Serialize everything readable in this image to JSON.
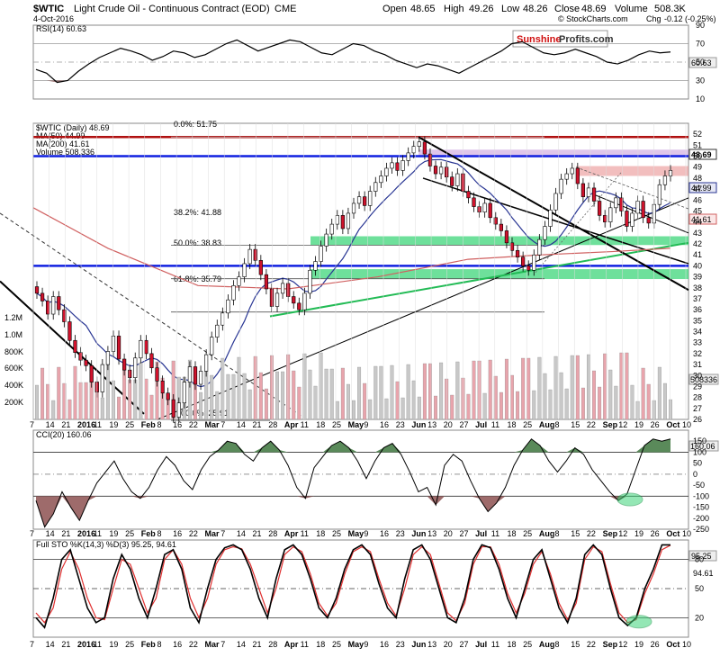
{
  "header": {
    "symbol": "$WTIC",
    "name": "Light Crude Oil - Continuous Contract (EOD)",
    "exchange": "CME",
    "date": "4-Oct-2016",
    "open_label": "Open",
    "open": "48.65",
    "high_label": "High",
    "high": "49.26",
    "low_label": "Low",
    "low": "48.26",
    "close_label": "Close",
    "close": "48.69",
    "volume_label": "Volume",
    "volume": "508.3K",
    "chg_label": "Chg",
    "chg": "-0.12 (-0.25%)",
    "watermark": "© StockCharts.com"
  },
  "logo": {
    "part1": "Sunshine",
    "part2": "Profits.com"
  },
  "colors": {
    "green_zone": "#3dd57a",
    "red_resist": "#e88888",
    "purple_zone": "#c9a0dc",
    "blue_line": "#1020e0",
    "dark_red_line": "#b01010",
    "ma50": "#283593",
    "ma200": "#d06060",
    "up_candle": "#ffffff",
    "down_candle": "#d0122c",
    "vol_up": "#c8c8c8",
    "vol_down": "#e8a4ac",
    "cci_fill": "#5a8a5a",
    "cci_neg_fill": "#9e6b6b",
    "sto_k": "#000000",
    "sto_d": "#e03030"
  },
  "chart_data": [
    {
      "type": "line",
      "panel": "rsi",
      "title": "RSI(14) 60.63",
      "ylim": [
        10,
        90
      ],
      "yticks": [
        90,
        70,
        50,
        30,
        10
      ],
      "value_label": "60.63",
      "last_value": 60.63,
      "levels": [
        70,
        30,
        50
      ],
      "values": [
        42,
        38,
        28,
        30,
        40,
        48,
        55,
        60,
        65,
        62,
        58,
        52,
        56,
        62,
        60,
        55,
        58,
        64,
        70,
        74,
        68,
        62,
        66,
        70,
        74,
        72,
        66,
        60,
        58,
        64,
        70,
        68,
        62,
        58,
        52,
        48,
        44,
        48,
        46,
        42,
        38,
        44,
        50,
        56,
        62,
        70,
        72,
        66,
        60,
        58,
        60,
        64,
        60,
        56,
        50,
        48,
        52,
        58,
        62,
        60,
        61
      ],
      "negative_dip_label": "below 30 in early Jan 2016"
    },
    {
      "type": "candlestick",
      "panel": "price",
      "title": "$WTIC (Daily) 48.69",
      "ylim": [
        26,
        53
      ],
      "yticks": [
        52,
        51,
        50,
        49,
        48,
        47,
        46,
        45,
        44,
        43,
        42,
        41,
        40,
        39,
        38,
        37,
        36,
        35,
        34,
        33,
        32,
        31,
        30,
        29,
        28,
        27,
        26
      ],
      "last_price_label": "48.69",
      "ma50_label": "MA(50) 44.99",
      "ma50_value_label": "44.99",
      "ma200_label": "MA(200) 41.61",
      "ma200_value_label": "41.61",
      "volume_label": "Volume 508,336",
      "volume_value_label": "508336",
      "volume_ticks": [
        "1.2M",
        "1.0M",
        "800K",
        "600K",
        "400K",
        "200K"
      ],
      "fib_labels": [
        "0.0%: 51.75",
        "38.2%: 41.88",
        "50.0%: 38.83",
        "61.8%: 35.79",
        "100.0%: 25.91"
      ],
      "fib_levels": [
        51.75,
        41.88,
        38.83,
        35.79,
        25.91
      ],
      "x_labels": [
        "7",
        "14",
        "21",
        "2016",
        "11",
        "19",
        "25",
        "Feb",
        "8",
        "16",
        "22",
        "Mar",
        "7",
        "14",
        "21",
        "28",
        "Apr",
        "11",
        "18",
        "25",
        "May",
        "9",
        "16",
        "23",
        "Jun",
        "13",
        "20",
        "27",
        "Jul",
        "11",
        "18",
        "25",
        "Aug",
        "8",
        "15",
        "22",
        "Sep",
        "12",
        "19",
        "26",
        "Oct",
        "10"
      ],
      "closes": [
        37.5,
        36.8,
        35.6,
        37.2,
        36.0,
        34.9,
        33.2,
        32.1,
        31.4,
        30.9,
        29.4,
        28.5,
        31.0,
        32.2,
        33.6,
        31.5,
        30.5,
        29.8,
        31.6,
        33.2,
        32.0,
        30.7,
        29.5,
        28.4,
        27.8,
        26.2,
        27.5,
        29.4,
        30.8,
        29.2,
        30.4,
        31.9,
        33.5,
        34.6,
        35.7,
        36.9,
        38.2,
        39.0,
        40.2,
        41.5,
        40.5,
        39.2,
        37.9,
        36.3,
        37.5,
        38.4,
        37.2,
        36.6,
        36.0,
        37.5,
        39.6,
        40.4,
        41.8,
        42.9,
        43.8,
        44.6,
        43.4,
        44.8,
        45.7,
        46.3,
        45.5,
        46.8,
        47.6,
        48.2,
        48.9,
        49.4,
        48.7,
        49.6,
        50.3,
        50.9,
        51.3,
        50.2,
        49.1,
        48.4,
        49.0,
        48.1,
        47.3,
        48.4,
        46.8,
        46.2,
        45.4,
        44.9,
        45.7,
        44.4,
        43.8,
        43.2,
        42.1,
        41.4,
        40.8,
        40.0,
        39.6,
        41.0,
        42.4,
        43.6,
        45.1,
        46.6,
        47.9,
        48.4,
        48.9,
        47.5,
        46.3,
        47.1,
        45.9,
        44.6,
        44.0,
        45.3,
        46.2,
        45.0,
        43.6,
        44.8,
        45.9,
        44.4,
        43.9,
        45.6,
        47.4,
        48.2,
        48.69
      ]
    },
    {
      "type": "area",
      "panel": "cci",
      "title": "CCI(20) 160.06",
      "value_label": "160.06",
      "last_value": 160.06,
      "ylim": [
        -250,
        200
      ],
      "yticks": [
        150,
        100,
        50,
        0,
        -50,
        -100,
        -150,
        -200,
        -250
      ],
      "levels": [
        100,
        -100
      ],
      "values": [
        -120,
        -240,
        -180,
        -80,
        -150,
        -210,
        -120,
        -40,
        10,
        60,
        -20,
        -80,
        -110,
        -60,
        20,
        80,
        40,
        -30,
        -70,
        20,
        80,
        110,
        150,
        140,
        90,
        60,
        120,
        150,
        110,
        40,
        -60,
        -110,
        30,
        80,
        130,
        150,
        120,
        60,
        -20,
        60,
        120,
        140,
        90,
        10,
        -80,
        -60,
        -140,
        40,
        90,
        60,
        -30,
        -110,
        -170,
        -130,
        -60,
        40,
        110,
        160,
        130,
        60,
        10,
        60,
        120,
        90,
        20,
        -30,
        -80,
        -120,
        -90,
        20,
        130,
        160,
        150,
        160
      ]
    },
    {
      "type": "line",
      "panel": "stochastic",
      "title": "Full STO %K(14,3) %D(3) 95.25, 94.61",
      "k_label": "95.25",
      "d_label": "94.61",
      "last_k": 95.25,
      "last_d": 94.61,
      "ylim": [
        0,
        100
      ],
      "yticks": [
        80,
        50,
        20
      ],
      "levels": [
        80,
        50,
        20
      ],
      "k_values": [
        20,
        10,
        40,
        80,
        90,
        60,
        30,
        15,
        20,
        60,
        85,
        70,
        40,
        20,
        50,
        85,
        90,
        70,
        30,
        15,
        50,
        80,
        92,
        95,
        90,
        70,
        40,
        20,
        60,
        90,
        95,
        85,
        60,
        30,
        20,
        40,
        70,
        90,
        95,
        85,
        55,
        30,
        20,
        60,
        90,
        95,
        80,
        50,
        20,
        15,
        40,
        80,
        95,
        92,
        70,
        40,
        20,
        50,
        80,
        90,
        60,
        30,
        15,
        40,
        85,
        95,
        85,
        50,
        20,
        12,
        20,
        50,
        70,
        95,
        95
      ],
      "d_values": [
        25,
        15,
        30,
        70,
        88,
        70,
        40,
        20,
        18,
        50,
        80,
        75,
        50,
        25,
        40,
        80,
        90,
        75,
        40,
        20,
        40,
        75,
        90,
        93,
        91,
        75,
        50,
        25,
        50,
        85,
        93,
        88,
        65,
        35,
        22,
        35,
        65,
        88,
        93,
        88,
        60,
        35,
        22,
        50,
        85,
        93,
        85,
        55,
        25,
        17,
        35,
        75,
        93,
        93,
        75,
        45,
        25,
        45,
        75,
        88,
        65,
        35,
        18,
        35,
        80,
        93,
        88,
        55,
        25,
        15,
        18,
        45,
        65,
        90,
        94.61
      ]
    }
  ]
}
